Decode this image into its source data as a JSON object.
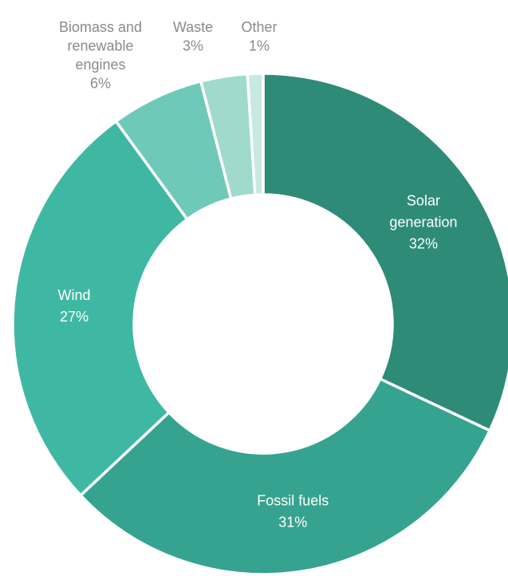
{
  "chart_data": {
    "type": "pie",
    "variant": "donut",
    "start_angle_deg": 0,
    "direction": "clockwise",
    "slices": [
      {
        "label_lines": [
          "Solar",
          "generation"
        ],
        "pct_label": "32%",
        "value": 32,
        "color": "#2e8b78",
        "label_position": "inside",
        "label_color": "#ffffff"
      },
      {
        "label_lines": [
          "Fossil fuels"
        ],
        "pct_label": "31%",
        "value": 31,
        "color": "#35a38f",
        "label_position": "inside",
        "label_color": "#ffffff"
      },
      {
        "label_lines": [
          "Wind"
        ],
        "pct_label": "27%",
        "value": 27,
        "color": "#3fb8a3",
        "label_position": "inside",
        "label_color": "#ffffff"
      },
      {
        "label_lines": [
          "Biomass and",
          "renewable",
          "engines"
        ],
        "pct_label": "6%",
        "value": 6,
        "color": "#6fc9b8",
        "label_position": "outside",
        "label_color": "#8a8a8a"
      },
      {
        "label_lines": [
          "Waste"
        ],
        "pct_label": "3%",
        "value": 3,
        "color": "#9fdacd",
        "label_position": "outside",
        "label_color": "#8a8a8a"
      },
      {
        "label_lines": [
          "Other"
        ],
        "pct_label": "1%",
        "value": 1,
        "color": "#c7e9e1",
        "label_position": "outside",
        "label_color": "#8a8a8a"
      }
    ]
  }
}
